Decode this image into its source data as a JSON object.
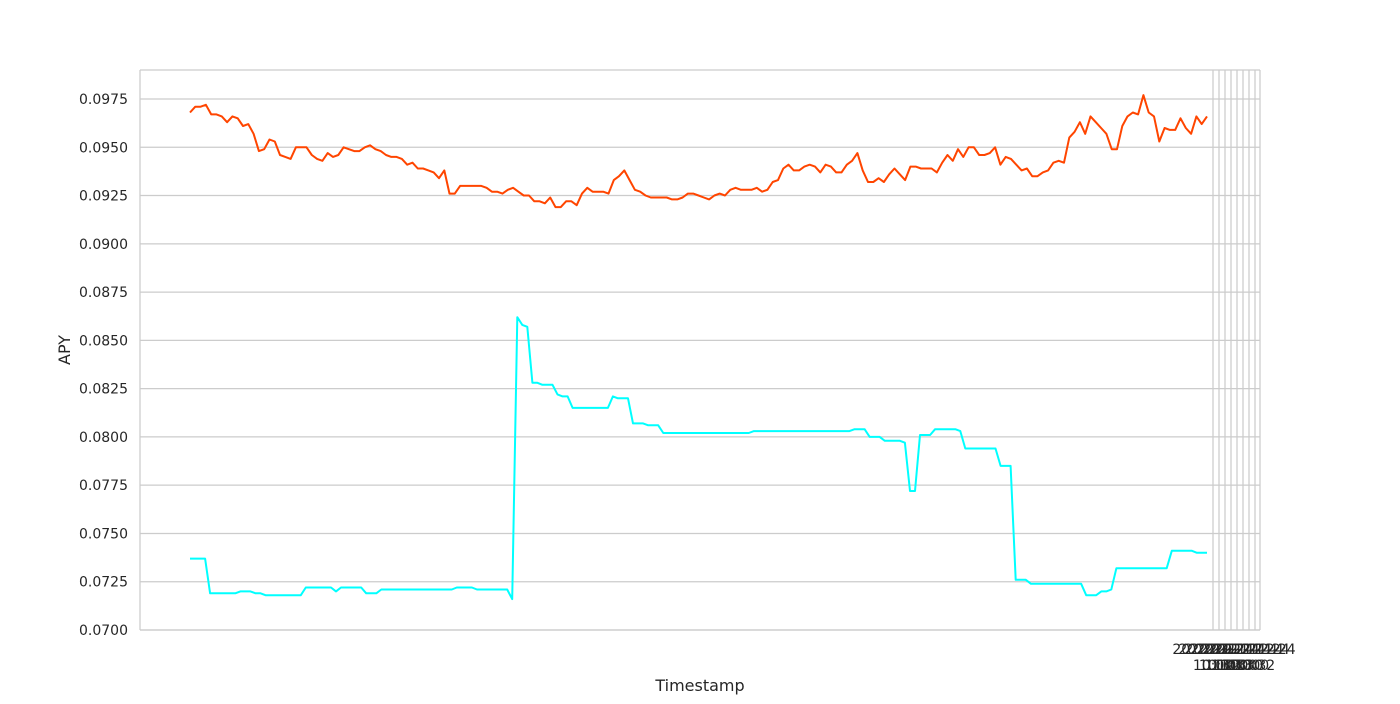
{
  "chart_data": {
    "type": "line",
    "title": "",
    "xlabel": "Timestamp",
    "ylabel": "APY",
    "ylim": [
      0.07,
      0.0978
    ],
    "grid": true,
    "legend": "none",
    "y_ticks": [
      "0.0700",
      "0.0725",
      "0.0750",
      "0.0775",
      "0.0800",
      "0.0825",
      "0.0850",
      "0.0875",
      "0.0900",
      "0.0925",
      "0.0950",
      "0.0975"
    ],
    "x_ticks_top": [
      "2022-11-24",
      "2022-11-24",
      "2022-11-24",
      "2022-11-24",
      "2022-11-24",
      "2022-11-24",
      "2022-11-24",
      "2022-11-24"
    ],
    "x_ticks_bottom": [
      "10:00",
      "10:30",
      "11:00",
      "11:30",
      "12:00",
      "12:30",
      "13:00",
      "13:32"
    ],
    "series": [
      {
        "color": "#ff4500",
        "values": [
          0.0968,
          0.0971,
          0.0971,
          0.0972,
          0.0967,
          0.0967,
          0.0966,
          0.0963,
          0.0966,
          0.0965,
          0.0961,
          0.0962,
          0.0957,
          0.0948,
          0.0949,
          0.0954,
          0.0953,
          0.0946,
          0.0945,
          0.0944,
          0.095,
          0.095,
          0.095,
          0.0946,
          0.0944,
          0.0943,
          0.0947,
          0.0945,
          0.0946,
          0.095,
          0.0949,
          0.0948,
          0.0948,
          0.095,
          0.0951,
          0.0949,
          0.0948,
          0.0946,
          0.0945,
          0.0945,
          0.0944,
          0.0941,
          0.0942,
          0.0939,
          0.0939,
          0.0938,
          0.0937,
          0.0934,
          0.0938,
          0.0926,
          0.0926,
          0.093,
          0.093,
          0.093,
          0.093,
          0.093,
          0.0929,
          0.0927,
          0.0927,
          0.0926,
          0.0928,
          0.0929,
          0.0927,
          0.0925,
          0.0925,
          0.0922,
          0.0922,
          0.0921,
          0.0924,
          0.0919,
          0.0919,
          0.0922,
          0.0922,
          0.092,
          0.0926,
          0.0929,
          0.0927,
          0.0927,
          0.0927,
          0.0926,
          0.0933,
          0.0935,
          0.0938,
          0.0933,
          0.0928,
          0.0927,
          0.0925,
          0.0924,
          0.0924,
          0.0924,
          0.0924,
          0.0923,
          0.0923,
          0.0924,
          0.0926,
          0.0926,
          0.0925,
          0.0924,
          0.0923,
          0.0925,
          0.0926,
          0.0925,
          0.0928,
          0.0929,
          0.0928,
          0.0928,
          0.0928,
          0.0929,
          0.0927,
          0.0928,
          0.0932,
          0.0933,
          0.0939,
          0.0941,
          0.0938,
          0.0938,
          0.094,
          0.0941,
          0.094,
          0.0937,
          0.0941,
          0.094,
          0.0937,
          0.0937,
          0.0941,
          0.0943,
          0.0947,
          0.0938,
          0.0932,
          0.0932,
          0.0934,
          0.0932,
          0.0936,
          0.0939,
          0.0936,
          0.0933,
          0.094,
          0.094,
          0.0939,
          0.0939,
          0.0939,
          0.0937,
          0.0942,
          0.0946,
          0.0943,
          0.0949,
          0.0945,
          0.095,
          0.095,
          0.0946,
          0.0946,
          0.0947,
          0.095,
          0.0941,
          0.0945,
          0.0944,
          0.0941,
          0.0938,
          0.0939,
          0.0935,
          0.0935,
          0.0937,
          0.0938,
          0.0942,
          0.0943,
          0.0942,
          0.0955,
          0.0958,
          0.0963,
          0.0957,
          0.0966,
          0.0963,
          0.096,
          0.0957,
          0.0949,
          0.0949,
          0.0961,
          0.0966,
          0.0968,
          0.0967,
          0.0977,
          0.0968,
          0.0966,
          0.0953,
          0.096,
          0.0959,
          0.0959,
          0.0965,
          0.096,
          0.0957,
          0.0966,
          0.0962,
          0.0966
        ]
      },
      {
        "color": "#00ffff",
        "values": [
          0.0737,
          0.0737,
          0.0737,
          0.0737,
          0.0719,
          0.0719,
          0.0719,
          0.0719,
          0.0719,
          0.0719,
          0.072,
          0.072,
          0.072,
          0.0719,
          0.0719,
          0.0718,
          0.0718,
          0.0718,
          0.0718,
          0.0718,
          0.0718,
          0.0718,
          0.0718,
          0.0722,
          0.0722,
          0.0722,
          0.0722,
          0.0722,
          0.0722,
          0.072,
          0.0722,
          0.0722,
          0.0722,
          0.0722,
          0.0722,
          0.0719,
          0.0719,
          0.0719,
          0.0721,
          0.0721,
          0.0721,
          0.0721,
          0.0721,
          0.0721,
          0.0721,
          0.0721,
          0.0721,
          0.0721,
          0.0721,
          0.0721,
          0.0721,
          0.0721,
          0.0721,
          0.0722,
          0.0722,
          0.0722,
          0.0722,
          0.0721,
          0.0721,
          0.0721,
          0.0721,
          0.0721,
          0.0721,
          0.0721,
          0.0716,
          0.0862,
          0.0858,
          0.0857,
          0.0828,
          0.0828,
          0.0827,
          0.0827,
          0.0827,
          0.0822,
          0.0821,
          0.0821,
          0.0815,
          0.0815,
          0.0815,
          0.0815,
          0.0815,
          0.0815,
          0.0815,
          0.0815,
          0.0821,
          0.082,
          0.082,
          0.082,
          0.0807,
          0.0807,
          0.0807,
          0.0806,
          0.0806,
          0.0806,
          0.0802,
          0.0802,
          0.0802,
          0.0802,
          0.0802,
          0.0802,
          0.0802,
          0.0802,
          0.0802,
          0.0802,
          0.0802,
          0.0802,
          0.0802,
          0.0802,
          0.0802,
          0.0802,
          0.0802,
          0.0802,
          0.0803,
          0.0803,
          0.0803,
          0.0803,
          0.0803,
          0.0803,
          0.0803,
          0.0803,
          0.0803,
          0.0803,
          0.0803,
          0.0803,
          0.0803,
          0.0803,
          0.0803,
          0.0803,
          0.0803,
          0.0803,
          0.0803,
          0.0803,
          0.0804,
          0.0804,
          0.0804,
          0.08,
          0.08,
          0.08,
          0.0798,
          0.0798,
          0.0798,
          0.0798,
          0.0797,
          0.0772,
          0.0772,
          0.0801,
          0.0801,
          0.0801,
          0.0804,
          0.0804,
          0.0804,
          0.0804,
          0.0804,
          0.0803,
          0.0794,
          0.0794,
          0.0794,
          0.0794,
          0.0794,
          0.0794,
          0.0794,
          0.0785,
          0.0785,
          0.0785,
          0.0726,
          0.0726,
          0.0726,
          0.0724,
          0.0724,
          0.0724,
          0.0724,
          0.0724,
          0.0724,
          0.0724,
          0.0724,
          0.0724,
          0.0724,
          0.0724,
          0.0718,
          0.0718,
          0.0718,
          0.072,
          0.072,
          0.0721,
          0.0732,
          0.0732,
          0.0732,
          0.0732,
          0.0732,
          0.0732,
          0.0732,
          0.0732,
          0.0732,
          0.0732,
          0.0732,
          0.0741,
          0.0741,
          0.0741,
          0.0741,
          0.0741,
          0.074,
          0.074,
          0.074
        ]
      }
    ]
  }
}
